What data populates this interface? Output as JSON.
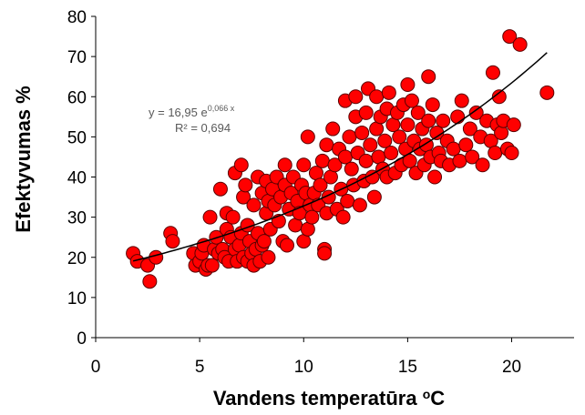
{
  "chart_data": {
    "type": "scatter",
    "title": "",
    "xlabel": "Vandens temperatūra",
    "xlabel_unit_prefix": "o",
    "xlabel_unit": "C",
    "ylabel": "Efektyvumas %",
    "xlim": [
      0,
      23
    ],
    "ylim": [
      0,
      80
    ],
    "xticks": [
      0,
      5,
      10,
      15,
      20
    ],
    "yticks": [
      0,
      10,
      20,
      30,
      40,
      50,
      60,
      70,
      80
    ],
    "grid": false,
    "legend": "none",
    "marker_color": "#ff0000",
    "marker_edge": "#5a0000",
    "trendline": {
      "type": "exponential",
      "a": 16.95,
      "b": 0.066,
      "x_range": [
        1.8,
        21.7
      ],
      "equation_prefix": "y = 16,95 e",
      "equation_exponent": "0,066 x",
      "r2_label": "R² = 0,694"
    },
    "series": [
      {
        "points": [
          [
            1.8,
            21
          ],
          [
            2.0,
            19
          ],
          [
            2.5,
            18
          ],
          [
            2.6,
            14
          ],
          [
            2.9,
            20
          ],
          [
            3.6,
            26
          ],
          [
            3.7,
            24
          ],
          [
            4.7,
            21
          ],
          [
            4.8,
            18
          ],
          [
            5.0,
            19
          ],
          [
            5.1,
            21
          ],
          [
            5.2,
            23
          ],
          [
            5.3,
            17
          ],
          [
            5.4,
            18
          ],
          [
            5.5,
            30
          ],
          [
            5.6,
            18
          ],
          [
            5.7,
            22
          ],
          [
            5.8,
            25
          ],
          [
            5.9,
            21
          ],
          [
            6.0,
            37
          ],
          [
            6.1,
            22
          ],
          [
            6.2,
            20
          ],
          [
            6.3,
            27
          ],
          [
            6.3,
            31
          ],
          [
            6.4,
            19
          ],
          [
            6.5,
            25
          ],
          [
            6.6,
            30
          ],
          [
            6.7,
            22
          ],
          [
            6.7,
            41
          ],
          [
            6.8,
            19
          ],
          [
            6.9,
            23
          ],
          [
            7.0,
            43
          ],
          [
            7.0,
            26
          ],
          [
            7.1,
            35
          ],
          [
            7.1,
            20
          ],
          [
            7.2,
            38
          ],
          [
            7.3,
            28
          ],
          [
            7.3,
            19
          ],
          [
            7.4,
            24
          ],
          [
            7.5,
            21
          ],
          [
            7.6,
            33
          ],
          [
            7.6,
            18
          ],
          [
            7.7,
            22
          ],
          [
            7.8,
            40
          ],
          [
            7.8,
            26
          ],
          [
            7.9,
            19
          ],
          [
            8.0,
            36
          ],
          [
            8.0,
            23
          ],
          [
            8.1,
            24
          ],
          [
            8.2,
            31
          ],
          [
            8.2,
            39
          ],
          [
            8.3,
            34
          ],
          [
            8.3,
            20
          ],
          [
            8.4,
            27
          ],
          [
            8.5,
            37
          ],
          [
            8.6,
            33
          ],
          [
            8.7,
            40
          ],
          [
            8.8,
            29
          ],
          [
            8.9,
            35
          ],
          [
            9.0,
            24
          ],
          [
            9.1,
            43
          ],
          [
            9.1,
            38
          ],
          [
            9.2,
            23
          ],
          [
            9.3,
            32
          ],
          [
            9.4,
            36
          ],
          [
            9.5,
            40
          ],
          [
            9.6,
            28
          ],
          [
            9.7,
            34
          ],
          [
            9.8,
            31
          ],
          [
            9.9,
            38
          ],
          [
            10.0,
            24
          ],
          [
            10.0,
            43
          ],
          [
            10.1,
            36
          ],
          [
            10.2,
            27
          ],
          [
            10.2,
            50
          ],
          [
            10.3,
            33
          ],
          [
            10.4,
            30
          ],
          [
            10.5,
            36
          ],
          [
            10.6,
            41
          ],
          [
            10.7,
            33
          ],
          [
            10.8,
            38
          ],
          [
            10.9,
            44
          ],
          [
            11.0,
            22
          ],
          [
            11.0,
            21
          ],
          [
            11.1,
            31
          ],
          [
            11.1,
            48
          ],
          [
            11.2,
            35
          ],
          [
            11.3,
            40
          ],
          [
            11.4,
            52
          ],
          [
            11.5,
            43
          ],
          [
            11.6,
            32
          ],
          [
            11.7,
            47
          ],
          [
            11.8,
            37
          ],
          [
            11.9,
            30
          ],
          [
            12.0,
            45
          ],
          [
            12.0,
            59
          ],
          [
            12.1,
            34
          ],
          [
            12.2,
            50
          ],
          [
            12.3,
            42
          ],
          [
            12.4,
            38
          ],
          [
            12.5,
            55
          ],
          [
            12.5,
            60
          ],
          [
            12.6,
            46
          ],
          [
            12.7,
            33
          ],
          [
            12.8,
            51
          ],
          [
            12.9,
            39
          ],
          [
            13.0,
            44
          ],
          [
            13.0,
            56
          ],
          [
            13.1,
            62
          ],
          [
            13.2,
            48
          ],
          [
            13.3,
            40
          ],
          [
            13.4,
            35
          ],
          [
            13.5,
            52
          ],
          [
            13.5,
            60
          ],
          [
            13.6,
            45
          ],
          [
            13.7,
            55
          ],
          [
            13.8,
            42
          ],
          [
            13.9,
            49
          ],
          [
            14.0,
            57
          ],
          [
            14.0,
            40
          ],
          [
            14.1,
            61
          ],
          [
            14.2,
            46
          ],
          [
            14.3,
            53
          ],
          [
            14.4,
            41
          ],
          [
            14.5,
            56
          ],
          [
            14.6,
            50
          ],
          [
            14.7,
            43
          ],
          [
            14.8,
            58
          ],
          [
            14.9,
            47
          ],
          [
            15.0,
            63
          ],
          [
            15.0,
            53
          ],
          [
            15.1,
            44
          ],
          [
            15.2,
            59
          ],
          [
            15.3,
            49
          ],
          [
            15.4,
            41
          ],
          [
            15.5,
            56
          ],
          [
            15.6,
            47
          ],
          [
            15.7,
            52
          ],
          [
            15.8,
            43
          ],
          [
            15.9,
            48
          ],
          [
            16.0,
            65
          ],
          [
            16.0,
            54
          ],
          [
            16.1,
            45
          ],
          [
            16.2,
            58
          ],
          [
            16.3,
            40
          ],
          [
            16.4,
            51
          ],
          [
            16.5,
            46
          ],
          [
            16.6,
            44
          ],
          [
            16.7,
            54
          ],
          [
            16.9,
            49
          ],
          [
            17.0,
            43
          ],
          [
            17.2,
            47
          ],
          [
            17.4,
            55
          ],
          [
            17.5,
            44
          ],
          [
            17.6,
            59
          ],
          [
            17.8,
            48
          ],
          [
            18.0,
            52
          ],
          [
            18.1,
            45
          ],
          [
            18.3,
            56
          ],
          [
            18.5,
            50
          ],
          [
            18.6,
            43
          ],
          [
            18.8,
            54
          ],
          [
            19.0,
            49
          ],
          [
            19.1,
            66
          ],
          [
            19.2,
            46
          ],
          [
            19.3,
            53
          ],
          [
            19.4,
            60
          ],
          [
            19.5,
            51
          ],
          [
            19.6,
            54
          ],
          [
            19.8,
            47
          ],
          [
            19.9,
            75
          ],
          [
            20.0,
            46
          ],
          [
            20.1,
            53
          ],
          [
            20.4,
            73
          ],
          [
            21.7,
            61
          ]
        ]
      }
    ]
  }
}
